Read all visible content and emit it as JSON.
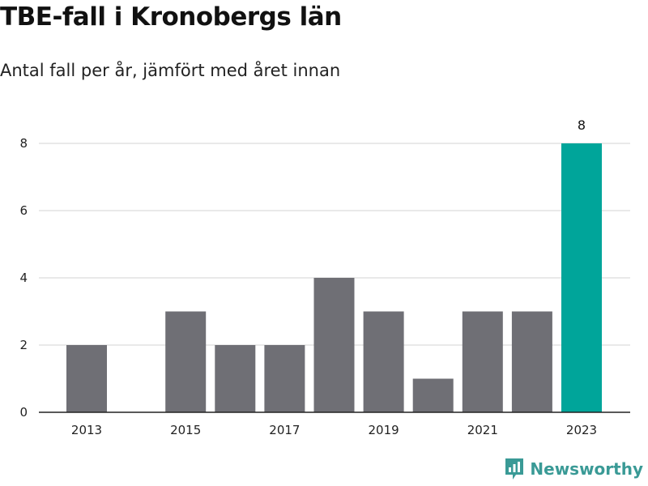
{
  "colors": {
    "bar": "#6f6f75",
    "highlight": "#00a59a",
    "grid": "#dcdcdc",
    "axis": "#222222",
    "brand": "#3a9a96"
  },
  "brand": {
    "name": "Newsworthy",
    "icon": "bar-chart-bubble-icon"
  },
  "chart_data": {
    "type": "bar",
    "title": "TBE-fall i Kronobergs län",
    "subtitle": "Antal fall per år, jämfört med året innan",
    "categories": [
      "2013",
      "2014",
      "2015",
      "2016",
      "2017",
      "2018",
      "2019",
      "2020",
      "2021",
      "2022",
      "2023"
    ],
    "values": [
      2,
      0,
      3,
      2,
      2,
      4,
      3,
      1,
      3,
      3,
      8
    ],
    "highlight_index": 10,
    "x_tick_labels": [
      "2013",
      "2015",
      "2017",
      "2019",
      "2021",
      "2023"
    ],
    "y_ticks": [
      0,
      2,
      4,
      6,
      8
    ],
    "ylim": [
      0,
      8
    ],
    "data_labels": [
      {
        "index": 10,
        "text": "8"
      }
    ],
    "xlabel": "",
    "ylabel": "",
    "grid": true,
    "legend": "none"
  }
}
